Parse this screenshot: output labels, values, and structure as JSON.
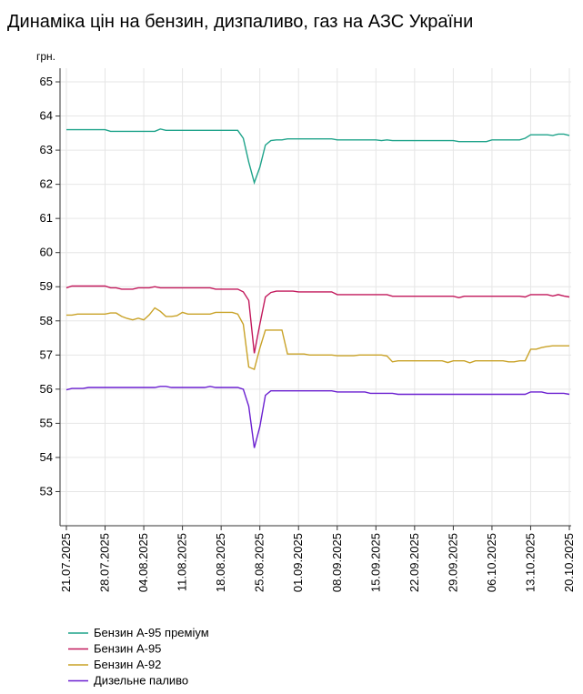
{
  "chart_data": {
    "type": "line",
    "title": "Динаміка цін на бензин, дизпаливо, газ на АЗС України",
    "y_unit": "грн.",
    "x": [
      "21.07.2025",
      "22.07.2025",
      "23.07.2025",
      "24.07.2025",
      "25.07.2025",
      "26.07.2025",
      "27.07.2025",
      "28.07.2025",
      "29.07.2025",
      "30.07.2025",
      "31.07.2025",
      "01.08.2025",
      "02.08.2025",
      "03.08.2025",
      "04.08.2025",
      "05.08.2025",
      "06.08.2025",
      "07.08.2025",
      "08.08.2025",
      "09.08.2025",
      "10.08.2025",
      "11.08.2025",
      "12.08.2025",
      "13.08.2025",
      "14.08.2025",
      "15.08.2025",
      "16.08.2025",
      "17.08.2025",
      "18.08.2025",
      "19.08.2025",
      "20.08.2025",
      "21.08.2025",
      "22.08.2025",
      "23.08.2025",
      "24.08.2025",
      "25.08.2025",
      "26.08.2025",
      "27.08.2025",
      "28.08.2025",
      "29.08.2025",
      "30.08.2025",
      "31.08.2025",
      "01.09.2025",
      "02.09.2025",
      "03.09.2025",
      "04.09.2025",
      "05.09.2025",
      "06.09.2025",
      "07.09.2025",
      "08.09.2025",
      "09.09.2025",
      "10.09.2025",
      "11.09.2025",
      "12.09.2025",
      "13.09.2025",
      "14.09.2025",
      "15.09.2025",
      "16.09.2025",
      "17.09.2025",
      "18.09.2025",
      "19.09.2025",
      "20.09.2025",
      "21.09.2025",
      "22.09.2025",
      "23.09.2025",
      "24.09.2025",
      "25.09.2025",
      "26.09.2025",
      "27.09.2025",
      "28.09.2025",
      "29.09.2025",
      "30.09.2025",
      "01.10.2025",
      "02.10.2025",
      "03.10.2025",
      "04.10.2025",
      "05.10.2025",
      "06.10.2025",
      "07.10.2025",
      "08.10.2025",
      "09.10.2025",
      "10.10.2025",
      "11.10.2025",
      "12.10.2025",
      "13.10.2025",
      "14.10.2025",
      "15.10.2025",
      "16.10.2025",
      "17.10.2025",
      "18.10.2025",
      "19.10.2025",
      "20.10.2025"
    ],
    "series": [
      {
        "name": "Бензин А-95 преміум",
        "color": "#1ea38a",
        "values": [
          63.6,
          63.6,
          63.6,
          63.6,
          63.6,
          63.6,
          63.6,
          63.6,
          63.55,
          63.55,
          63.55,
          63.55,
          63.55,
          63.55,
          63.55,
          63.55,
          63.55,
          63.62,
          63.58,
          63.58,
          63.58,
          63.58,
          63.58,
          63.58,
          63.58,
          63.58,
          63.58,
          63.58,
          63.58,
          63.58,
          63.58,
          63.58,
          63.35,
          62.65,
          62.05,
          62.5,
          63.15,
          63.28,
          63.3,
          63.3,
          63.33,
          63.33,
          63.33,
          63.33,
          63.33,
          63.33,
          63.33,
          63.33,
          63.33,
          63.3,
          63.3,
          63.3,
          63.3,
          63.3,
          63.3,
          63.3,
          63.3,
          63.28,
          63.3,
          63.28,
          63.28,
          63.28,
          63.28,
          63.28,
          63.28,
          63.28,
          63.28,
          63.28,
          63.28,
          63.28,
          63.28,
          63.25,
          63.25,
          63.25,
          63.25,
          63.25,
          63.25,
          63.3,
          63.3,
          63.3,
          63.3,
          63.3,
          63.3,
          63.35,
          63.45,
          63.45,
          63.45,
          63.45,
          63.43,
          63.47,
          63.47,
          63.43
        ]
      },
      {
        "name": "Бензин А-95",
        "color": "#c2185b",
        "values": [
          58.97,
          59.02,
          59.02,
          59.02,
          59.02,
          59.02,
          59.02,
          59.02,
          58.97,
          58.97,
          58.93,
          58.93,
          58.93,
          58.97,
          58.97,
          58.97,
          59.0,
          58.97,
          58.97,
          58.97,
          58.97,
          58.97,
          58.97,
          58.97,
          58.97,
          58.97,
          58.97,
          58.93,
          58.93,
          58.93,
          58.93,
          58.93,
          58.85,
          58.6,
          57.05,
          57.9,
          58.7,
          58.83,
          58.87,
          58.87,
          58.87,
          58.87,
          58.85,
          58.85,
          58.85,
          58.85,
          58.85,
          58.85,
          58.85,
          58.77,
          58.77,
          58.77,
          58.77,
          58.77,
          58.77,
          58.77,
          58.77,
          58.77,
          58.77,
          58.72,
          58.72,
          58.72,
          58.72,
          58.72,
          58.72,
          58.72,
          58.72,
          58.72,
          58.72,
          58.72,
          58.72,
          58.68,
          58.72,
          58.72,
          58.72,
          58.72,
          58.72,
          58.72,
          58.72,
          58.72,
          58.72,
          58.72,
          58.72,
          58.7,
          58.77,
          58.77,
          58.77,
          58.77,
          58.73,
          58.77,
          58.73,
          58.7
        ]
      },
      {
        "name": "Бензин А-92",
        "color": "#c9a227",
        "values": [
          58.17,
          58.17,
          58.2,
          58.2,
          58.2,
          58.2,
          58.2,
          58.2,
          58.23,
          58.23,
          58.13,
          58.07,
          58.03,
          58.08,
          58.03,
          58.18,
          58.38,
          58.28,
          58.13,
          58.13,
          58.15,
          58.25,
          58.2,
          58.2,
          58.2,
          58.2,
          58.2,
          58.25,
          58.25,
          58.25,
          58.25,
          58.2,
          57.9,
          56.65,
          56.58,
          57.2,
          57.73,
          57.73,
          57.73,
          57.73,
          57.03,
          57.03,
          57.03,
          57.03,
          57.0,
          57.0,
          57.0,
          57.0,
          57.0,
          56.98,
          56.98,
          56.98,
          56.98,
          57.0,
          57.0,
          57.0,
          57.0,
          57.0,
          56.97,
          56.8,
          56.83,
          56.83,
          56.83,
          56.83,
          56.83,
          56.83,
          56.83,
          56.83,
          56.83,
          56.78,
          56.83,
          56.83,
          56.83,
          56.77,
          56.83,
          56.83,
          56.83,
          56.83,
          56.83,
          56.83,
          56.8,
          56.8,
          56.83,
          56.83,
          57.17,
          57.17,
          57.22,
          57.25,
          57.27,
          57.27,
          57.27,
          57.27
        ]
      },
      {
        "name": "Дизельне паливо",
        "color": "#6a1fd0",
        "values": [
          55.98,
          56.02,
          56.02,
          56.02,
          56.05,
          56.05,
          56.05,
          56.05,
          56.05,
          56.05,
          56.05,
          56.05,
          56.05,
          56.05,
          56.05,
          56.05,
          56.05,
          56.08,
          56.08,
          56.05,
          56.05,
          56.05,
          56.05,
          56.05,
          56.05,
          56.05,
          56.08,
          56.05,
          56.05,
          56.05,
          56.05,
          56.05,
          56.0,
          55.5,
          54.28,
          54.9,
          55.82,
          55.95,
          55.95,
          55.95,
          55.95,
          55.95,
          55.95,
          55.95,
          55.95,
          55.95,
          55.95,
          55.95,
          55.95,
          55.92,
          55.92,
          55.92,
          55.92,
          55.92,
          55.92,
          55.88,
          55.88,
          55.88,
          55.88,
          55.88,
          55.85,
          55.85,
          55.85,
          55.85,
          55.85,
          55.85,
          55.85,
          55.85,
          55.85,
          55.85,
          55.85,
          55.85,
          55.85,
          55.85,
          55.85,
          55.85,
          55.85,
          55.85,
          55.85,
          55.85,
          55.85,
          55.85,
          55.85,
          55.85,
          55.92,
          55.92,
          55.92,
          55.88,
          55.88,
          55.88,
          55.88,
          55.85
        ]
      }
    ],
    "ylim": [
      52,
      65.4
    ],
    "yticks": [
      53,
      54,
      55,
      56,
      57,
      58,
      59,
      60,
      61,
      62,
      63,
      64,
      65
    ],
    "xticks": [
      "21.07.2025",
      "28.07.2025",
      "04.08.2025",
      "11.08.2025",
      "18.08.2025",
      "25.08.2025",
      "01.09.2025",
      "08.09.2025",
      "15.09.2025",
      "22.09.2025",
      "29.09.2025",
      "06.10.2025",
      "13.10.2025",
      "20.10.2025"
    ],
    "grid": true
  }
}
